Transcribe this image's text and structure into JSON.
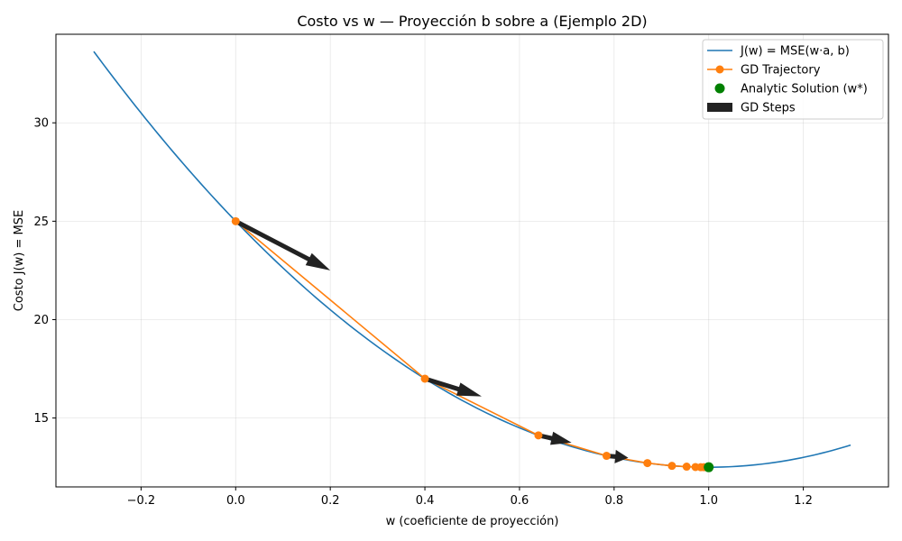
{
  "chart_data": {
    "type": "line",
    "title": "Costo vs w — Proyección b sobre a (Ejemplo 2D)",
    "xlabel": "w (coeficiente de proyección)",
    "ylabel": "Costo J(w) = MSE",
    "xlim": [
      -0.38,
      1.38
    ],
    "ylim": [
      11.5,
      34.5
    ],
    "xticks": [
      -0.2,
      0.0,
      0.2,
      0.4,
      0.6,
      0.8,
      1.0,
      1.2
    ],
    "xtick_labels": [
      "−0.2",
      "0.0",
      "0.2",
      "0.4",
      "0.6",
      "0.8",
      "1.0",
      "1.2"
    ],
    "yticks": [
      15,
      20,
      25,
      30
    ],
    "ytick_labels": [
      "15",
      "20",
      "25",
      "30"
    ],
    "grid": true,
    "legend_position": "top-right",
    "curve": {
      "name": "J(w) = MSE(w·a, b)",
      "color": "#1f77b4",
      "w_min": 1.0,
      "j_min": 12.5,
      "curvature": 12.5,
      "x_range": [
        -0.3,
        1.3
      ]
    },
    "trajectory": {
      "name": "GD Trajectory",
      "color": "#ff7f0e",
      "x": [
        0.0,
        0.4,
        0.64,
        0.784,
        0.8704,
        0.9222,
        0.9533,
        0.972,
        0.9832,
        0.9899
      ],
      "y": [
        25.0,
        17.0,
        14.12,
        13.08,
        12.71,
        12.57,
        12.53,
        12.51,
        12.5,
        12.5
      ]
    },
    "solution": {
      "name": "Analytic Solution (w*)",
      "color": "#008000",
      "x": 1.0,
      "y": 12.5
    },
    "steps": {
      "name": "GD Steps",
      "color": "#222222",
      "arrows": [
        {
          "x0": 0.0,
          "y0": 25.0,
          "x1": 0.2,
          "y1": 22.5
        },
        {
          "x0": 0.4,
          "y0": 17.0,
          "x1": 0.52,
          "y1": 16.1
        },
        {
          "x0": 0.64,
          "y0": 14.12,
          "x1": 0.71,
          "y1": 13.75
        },
        {
          "x0": 0.784,
          "y0": 13.08,
          "x1": 0.83,
          "y1": 12.98
        }
      ]
    }
  }
}
